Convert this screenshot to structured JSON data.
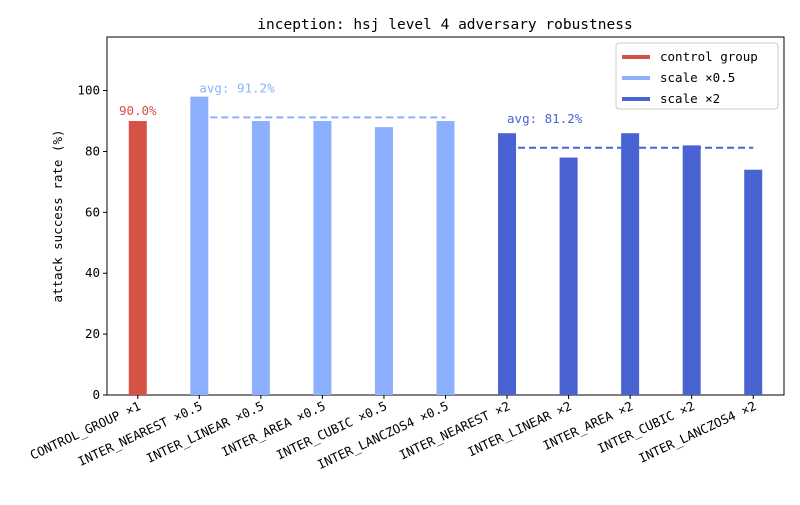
{
  "chart_data": {
    "type": "bar",
    "title": "inception: hsj level 4 adversary robustness",
    "y_label": "attack success rate (%)",
    "categories": [
      "CONTROL_GROUP ×1",
      "INTER_NEAREST ×0.5",
      "INTER_LINEAR ×0.5",
      "INTER_AREA ×0.5",
      "INTER_CUBIC ×0.5",
      "INTER_LANCZOS4 ×0.5",
      "INTER_NEAREST ×2",
      "INTER_LINEAR ×2",
      "INTER_AREA ×2",
      "INTER_CUBIC ×2",
      "INTER_LANCZOS4 ×2"
    ],
    "series": [
      {
        "name": "control group",
        "color": "#d65244",
        "values": [
          90,
          null,
          null,
          null,
          null,
          null,
          null,
          null,
          null,
          null,
          null
        ],
        "value_labels": [
          "90.0%",
          null,
          null,
          null,
          null,
          null,
          null,
          null,
          null,
          null,
          null
        ]
      },
      {
        "name": "scale ×0.5",
        "color": "#8db0fe",
        "values": [
          null,
          98,
          90,
          90,
          88,
          90,
          null,
          null,
          null,
          null,
          null
        ],
        "average": 91.2,
        "average_label": "avg: 91.2%"
      },
      {
        "name": "scale ×2",
        "color": "#4a63d3",
        "values": [
          null,
          null,
          null,
          null,
          null,
          null,
          86,
          78,
          86,
          82,
          74
        ],
        "average": 81.2,
        "average_label": "avg: 81.2%"
      }
    ],
    "ylim": [
      0,
      117.6
    ],
    "yticks": [
      0,
      20,
      40,
      60,
      80,
      100
    ],
    "legend": "upper right"
  }
}
